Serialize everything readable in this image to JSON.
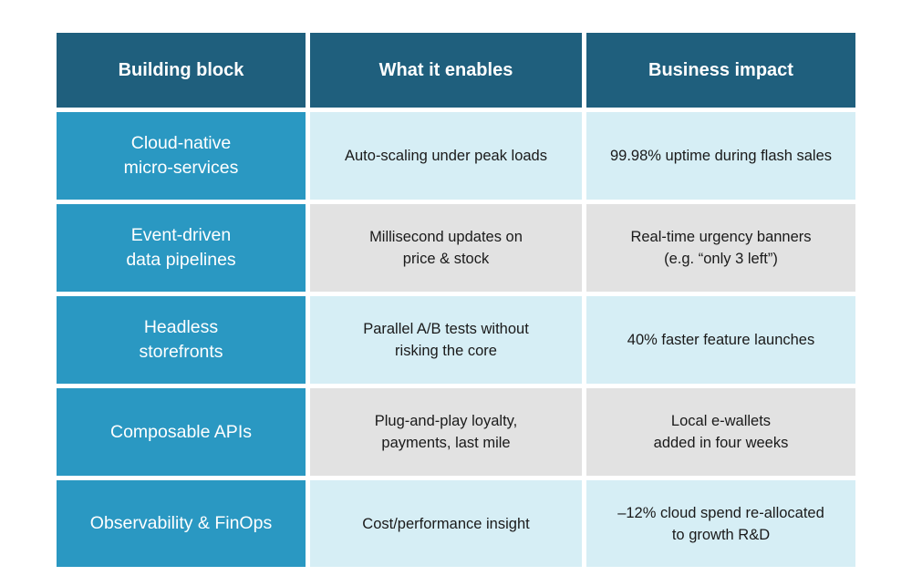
{
  "table": {
    "headers": [
      "Building block",
      "What it enables",
      "Business impact"
    ],
    "rows": [
      {
        "block": "Cloud-native\nmicro-services",
        "enables": "Auto-scaling under peak loads",
        "impact": "99.98% uptime during flash sales"
      },
      {
        "block": "Event-driven\ndata pipelines",
        "enables": "Millisecond updates on\nprice & stock",
        "impact": "Real-time urgency banners\n(e.g. “only 3 left”)"
      },
      {
        "block": "Headless\nstorefronts",
        "enables": "Parallel A/B tests without\nrisking the core",
        "impact": "40% faster feature launches"
      },
      {
        "block": "Composable APIs",
        "enables": "Plug-and-play loyalty,\npayments, last mile",
        "impact": "Local e-wallets\nadded in four weeks"
      },
      {
        "block": "Observability & FinOps",
        "enables": "Cost/performance insight",
        "impact": "–12% cloud spend re-allocated\nto growth R&D"
      }
    ]
  },
  "colors": {
    "header_bg": "#1f5f7d",
    "block_bg": "#2a98c2",
    "row_light": "#d6eef5",
    "row_grey": "#e2e2e2"
  }
}
